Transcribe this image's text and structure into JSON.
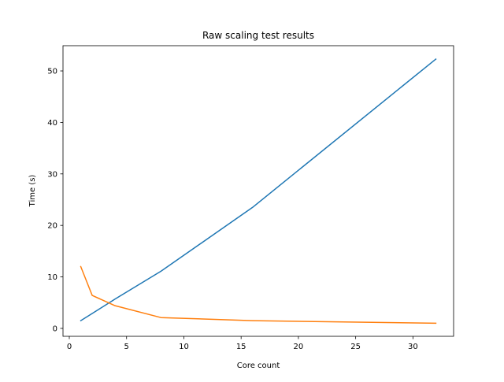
{
  "chart_data": {
    "type": "line",
    "title": "Raw scaling test results",
    "xlabel": "Core count",
    "ylabel": "Time  (s)",
    "xlim": [
      -0.55,
      33.55
    ],
    "ylim": [
      -1.54,
      54.9
    ],
    "xticks": [
      0,
      5,
      10,
      15,
      20,
      25,
      30
    ],
    "yticks": [
      0,
      10,
      20,
      30,
      40,
      50
    ],
    "grid": false,
    "series": [
      {
        "color": "#1f77b4",
        "x": [
          1,
          2,
          4,
          8,
          16,
          32
        ],
        "y": [
          1.5,
          2.9,
          5.7,
          11.1,
          23.5,
          52.3
        ]
      },
      {
        "color": "#ff7f0e",
        "x": [
          1,
          2,
          4,
          8,
          16,
          32
        ],
        "y": [
          12.0,
          6.4,
          4.4,
          2.1,
          1.5,
          1.0
        ]
      }
    ]
  }
}
